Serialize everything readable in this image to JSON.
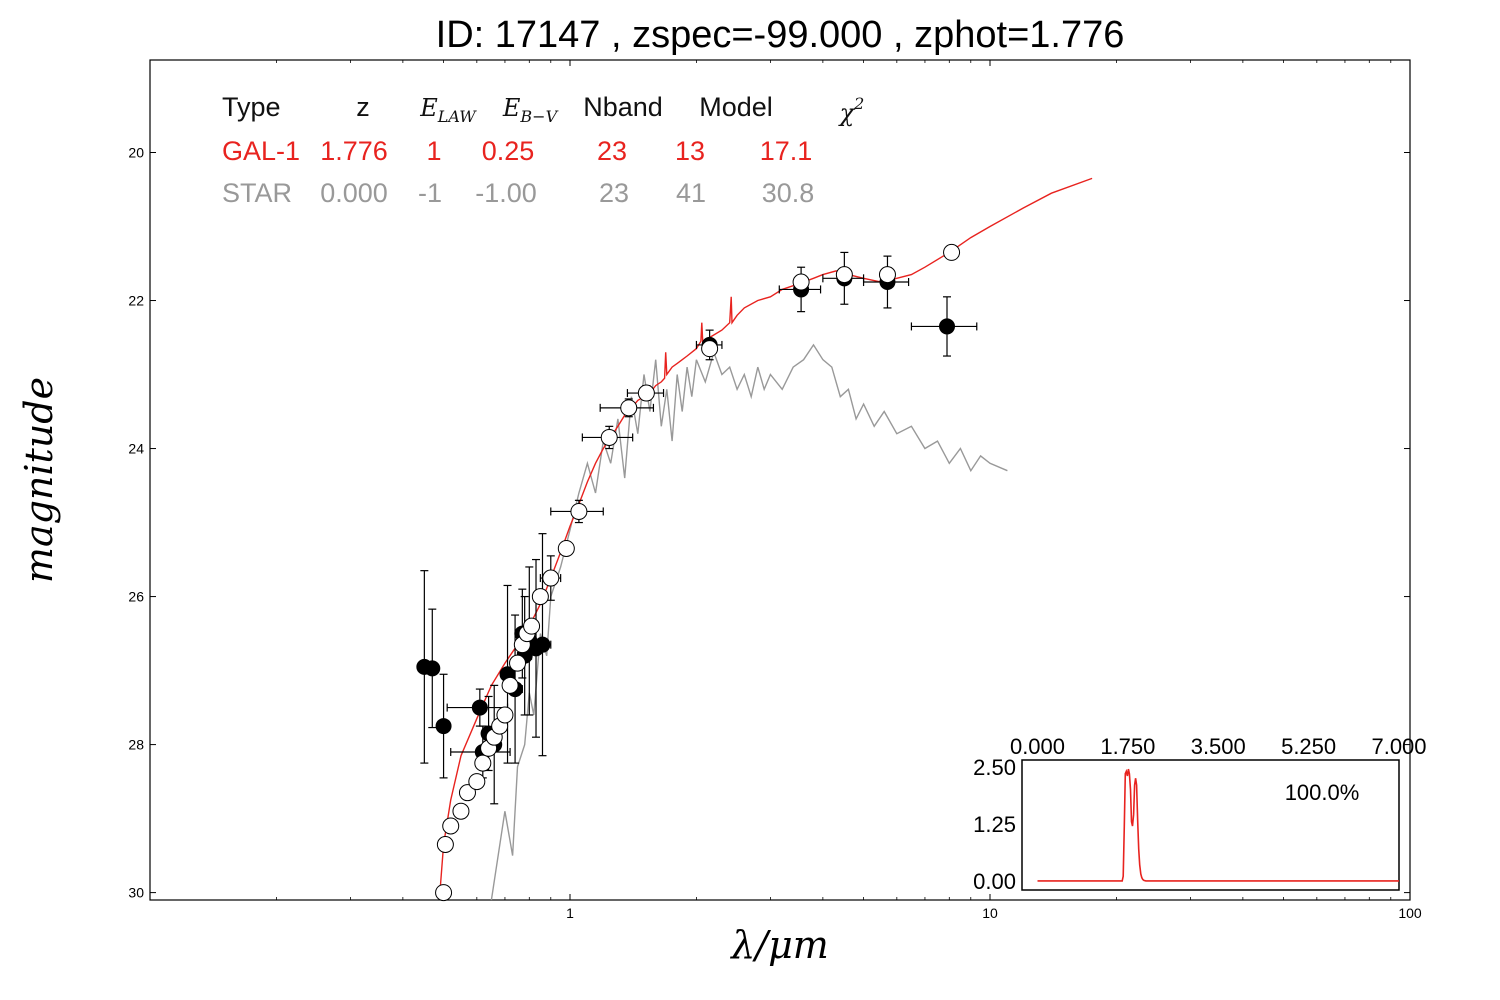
{
  "title": "ID:  17147 , zspec=-99.000 , zphot=1.776",
  "legend": {
    "headers": [
      "Type",
      "z",
      "E",
      "E",
      "Nband",
      "Model",
      "χ"
    ],
    "header_subs": [
      "",
      "",
      "LAW",
      "B−V",
      "",
      "",
      ""
    ],
    "chi_sup": "2",
    "rows": [
      {
        "label": "GAL-1",
        "z": "1.776",
        "elaw": "1",
        "ebv": "0.25",
        "nband": "23",
        "model": "13",
        "chi2": "17.1",
        "color": "#e8231f"
      },
      {
        "label": "STAR",
        "z": "0.000",
        "elaw": "-1",
        "ebv": "-1.00",
        "nband": "23",
        "model": "41",
        "chi2": "30.8",
        "color": "#999999"
      }
    ]
  },
  "chart_data": [
    {
      "type": "scatter",
      "xlabel": "λ/μm",
      "ylabel": "magnitude",
      "xscale": "log",
      "xlim": [
        0.1,
        100
      ],
      "ylim": [
        30.1,
        18.75
      ],
      "y_inverted": true,
      "xticks": [
        {
          "v": 1,
          "label": "1"
        },
        {
          "v": 10,
          "label": "10"
        },
        {
          "v": 100,
          "label": "100"
        }
      ],
      "yticks": [
        {
          "v": 20,
          "label": "20"
        },
        {
          "v": 22,
          "label": "22"
        },
        {
          "v": 24,
          "label": "24"
        },
        {
          "v": 26,
          "label": "26"
        },
        {
          "v": 28,
          "label": "28"
        },
        {
          "v": 30,
          "label": "30"
        }
      ],
      "colors": {
        "gal": "#e8231f",
        "star": "#999999",
        "obs": "#000000"
      },
      "gal_model": {
        "name": "GAL-1",
        "x": [
          0.49,
          0.5,
          0.52,
          0.55,
          0.6,
          0.65,
          0.7,
          0.75,
          0.8,
          0.85,
          0.9,
          0.95,
          1.0,
          1.05,
          1.1,
          1.15,
          1.2,
          1.25,
          1.3,
          1.35,
          1.4,
          1.45,
          1.5,
          1.55,
          1.6,
          1.65,
          1.68,
          1.69,
          1.7,
          1.75,
          1.8,
          1.85,
          1.9,
          2.0,
          2.05,
          2.06,
          2.07,
          2.15,
          2.3,
          2.4,
          2.42,
          2.43,
          2.5,
          2.6,
          2.8,
          3.0,
          3.2,
          3.4,
          3.6,
          3.8,
          4.0,
          4.3,
          4.6,
          5.0,
          5.5,
          6.0,
          6.5,
          7.0,
          8.0,
          9.0,
          10.0,
          12.0,
          14.0,
          17.5
        ],
        "y": [
          30.0,
          29.35,
          28.75,
          28.15,
          27.65,
          27.2,
          26.9,
          26.65,
          26.4,
          26.1,
          25.75,
          25.4,
          25.05,
          24.75,
          24.45,
          24.2,
          24.0,
          23.85,
          23.7,
          23.55,
          23.45,
          23.35,
          23.3,
          23.25,
          23.15,
          23.1,
          23.05,
          22.7,
          23.0,
          22.9,
          22.85,
          22.8,
          22.75,
          22.65,
          22.55,
          22.3,
          22.55,
          22.5,
          22.4,
          22.3,
          21.95,
          22.3,
          22.2,
          22.1,
          22.0,
          21.95,
          21.85,
          21.8,
          21.75,
          21.7,
          21.65,
          21.6,
          21.65,
          21.7,
          21.75,
          21.7,
          21.65,
          21.55,
          21.35,
          21.15,
          21.0,
          20.75,
          20.55,
          20.35
        ]
      },
      "star_model": {
        "name": "STAR",
        "x": [
          0.65,
          0.7,
          0.73,
          0.75,
          0.78,
          0.8,
          0.82,
          0.85,
          0.88,
          0.9,
          0.95,
          1.0,
          1.05,
          1.1,
          1.15,
          1.2,
          1.25,
          1.3,
          1.35,
          1.4,
          1.45,
          1.5,
          1.55,
          1.6,
          1.65,
          1.7,
          1.75,
          1.8,
          1.85,
          1.9,
          1.95,
          2.0,
          2.1,
          2.2,
          2.3,
          2.4,
          2.5,
          2.6,
          2.7,
          2.8,
          2.9,
          3.0,
          3.2,
          3.4,
          3.6,
          3.8,
          4.0,
          4.2,
          4.4,
          4.6,
          4.8,
          5.0,
          5.3,
          5.6,
          6.0,
          6.5,
          7.0,
          7.5,
          8.0,
          8.5,
          9.0,
          9.5,
          10.0,
          11.0
        ],
        "y": [
          30.1,
          28.9,
          29.5,
          28.3,
          28.0,
          27.3,
          27.6,
          26.5,
          26.8,
          26.0,
          25.6,
          25.1,
          24.6,
          24.2,
          24.6,
          23.9,
          24.2,
          23.6,
          24.4,
          23.3,
          23.8,
          23.0,
          23.5,
          22.8,
          23.7,
          23.2,
          23.9,
          23.0,
          23.5,
          22.9,
          23.3,
          22.8,
          23.1,
          22.7,
          23.0,
          22.9,
          23.2,
          23.0,
          23.3,
          22.9,
          23.2,
          23.0,
          23.2,
          22.9,
          22.8,
          22.6,
          22.8,
          22.9,
          23.3,
          23.2,
          23.6,
          23.4,
          23.7,
          23.5,
          23.8,
          23.7,
          24.0,
          23.9,
          24.2,
          24.0,
          24.3,
          24.1,
          24.2,
          24.3
        ]
      },
      "observed": [
        {
          "x": 0.45,
          "y": 26.95,
          "yerr": 1.3,
          "xerr": 0.01
        },
        {
          "x": 0.47,
          "y": 26.97,
          "yerr": 0.8,
          "xerr": 0.01
        },
        {
          "x": 0.5,
          "y": 27.75,
          "yerr": 0.7,
          "xerr": 0.01
        },
        {
          "x": 0.61,
          "y": 27.5,
          "yerr": 0.25,
          "xerr": 0.1
        },
        {
          "x": 0.62,
          "y": 28.1,
          "yerr": 0.35,
          "xerr": 0.1
        },
        {
          "x": 0.64,
          "y": 27.85,
          "yerr": 0.5,
          "xerr": 0.02
        },
        {
          "x": 0.66,
          "y": 28.0,
          "yerr": 0.8,
          "xerr": 0.02
        },
        {
          "x": 0.71,
          "y": 27.05,
          "yerr": 1.2,
          "xerr": 0.02
        },
        {
          "x": 0.74,
          "y": 27.25,
          "yerr": 1.0,
          "xerr": 0.03
        },
        {
          "x": 0.77,
          "y": 26.5,
          "yerr": 0.6,
          "xerr": 0.03
        },
        {
          "x": 0.78,
          "y": 26.8,
          "yerr": 0.8,
          "xerr": 0.03
        },
        {
          "x": 0.8,
          "y": 26.6,
          "yerr": 1.0,
          "xerr": 0.03
        },
        {
          "x": 0.83,
          "y": 26.7,
          "yerr": 1.2,
          "xerr": 0.04
        },
        {
          "x": 0.86,
          "y": 26.65,
          "yerr": 1.5,
          "xerr": 0.04
        },
        {
          "x": 0.9,
          "y": 25.75,
          "yerr": 0.3,
          "xerr": 0.05
        },
        {
          "x": 1.05,
          "y": 24.85,
          "yerr": 0.15,
          "xerr": 0.15
        },
        {
          "x": 1.24,
          "y": 23.85,
          "yerr": 0.15,
          "xerr": 0.17
        },
        {
          "x": 1.38,
          "y": 23.45,
          "yerr": 0.12,
          "xerr": 0.2
        },
        {
          "x": 1.52,
          "y": 23.25,
          "yerr": 0.1,
          "xerr": 0.15
        },
        {
          "x": 2.15,
          "y": 22.6,
          "yerr": 0.2,
          "xerr": 0.15
        },
        {
          "x": 3.55,
          "y": 21.85,
          "yerr": 0.3,
          "xerr": 0.4
        },
        {
          "x": 4.5,
          "y": 21.7,
          "yerr": 0.35,
          "xerr": 0.5
        },
        {
          "x": 5.7,
          "y": 21.75,
          "yerr": 0.35,
          "xerr": 0.7
        },
        {
          "x": 7.9,
          "y": 22.35,
          "yerr": 0.4,
          "xerr": 1.4
        }
      ],
      "model_mags": {
        "x": [
          0.5,
          0.505,
          0.52,
          0.55,
          0.57,
          0.6,
          0.62,
          0.64,
          0.66,
          0.68,
          0.7,
          0.72,
          0.75,
          0.77,
          0.79,
          0.81,
          0.85,
          0.9,
          0.98,
          1.05,
          1.24,
          1.38,
          1.52,
          2.15,
          3.55,
          4.5,
          5.7,
          8.1
        ],
        "y": [
          30.0,
          29.35,
          29.1,
          28.9,
          28.65,
          28.5,
          28.25,
          28.05,
          27.9,
          27.75,
          27.6,
          27.2,
          26.9,
          26.65,
          26.5,
          26.4,
          26.0,
          25.75,
          25.35,
          24.85,
          23.85,
          23.45,
          23.25,
          22.65,
          21.75,
          21.65,
          21.65,
          21.35
        ]
      }
    },
    {
      "type": "line",
      "name": "PDZ",
      "xlim": [
        -0.3,
        7.0
      ],
      "ylim": [
        -0.2,
        2.65
      ],
      "xticks": [
        {
          "v": 0,
          "label": "0.000"
        },
        {
          "v": 1.75,
          "label": "1.750"
        },
        {
          "v": 3.5,
          "label": "3.500"
        },
        {
          "v": 5.25,
          "label": "5.250"
        },
        {
          "v": 7.0,
          "label": "7.000"
        }
      ],
      "yticks": [
        {
          "v": 0,
          "label": "0.00"
        },
        {
          "v": 1.25,
          "label": "1.25"
        },
        {
          "v": 2.5,
          "label": "2.50"
        }
      ],
      "annotation": "100.0%",
      "x": [
        0.0,
        1.64,
        1.66,
        1.68,
        1.7,
        1.72,
        1.74,
        1.76,
        1.78,
        1.8,
        1.82,
        1.84,
        1.86,
        1.88,
        1.9,
        1.92,
        1.94,
        1.96,
        1.98,
        2.0,
        2.02,
        2.04,
        2.06,
        2.1,
        2.2,
        7.0
      ],
      "y": [
        0.0,
        0.0,
        0.1,
        1.2,
        2.35,
        2.4,
        2.3,
        2.45,
        2.35,
        2.0,
        1.3,
        1.2,
        1.45,
        2.1,
        2.25,
        2.1,
        1.3,
        0.7,
        0.35,
        0.15,
        0.07,
        0.03,
        0.01,
        0.0,
        0.0,
        0.0
      ]
    }
  ]
}
